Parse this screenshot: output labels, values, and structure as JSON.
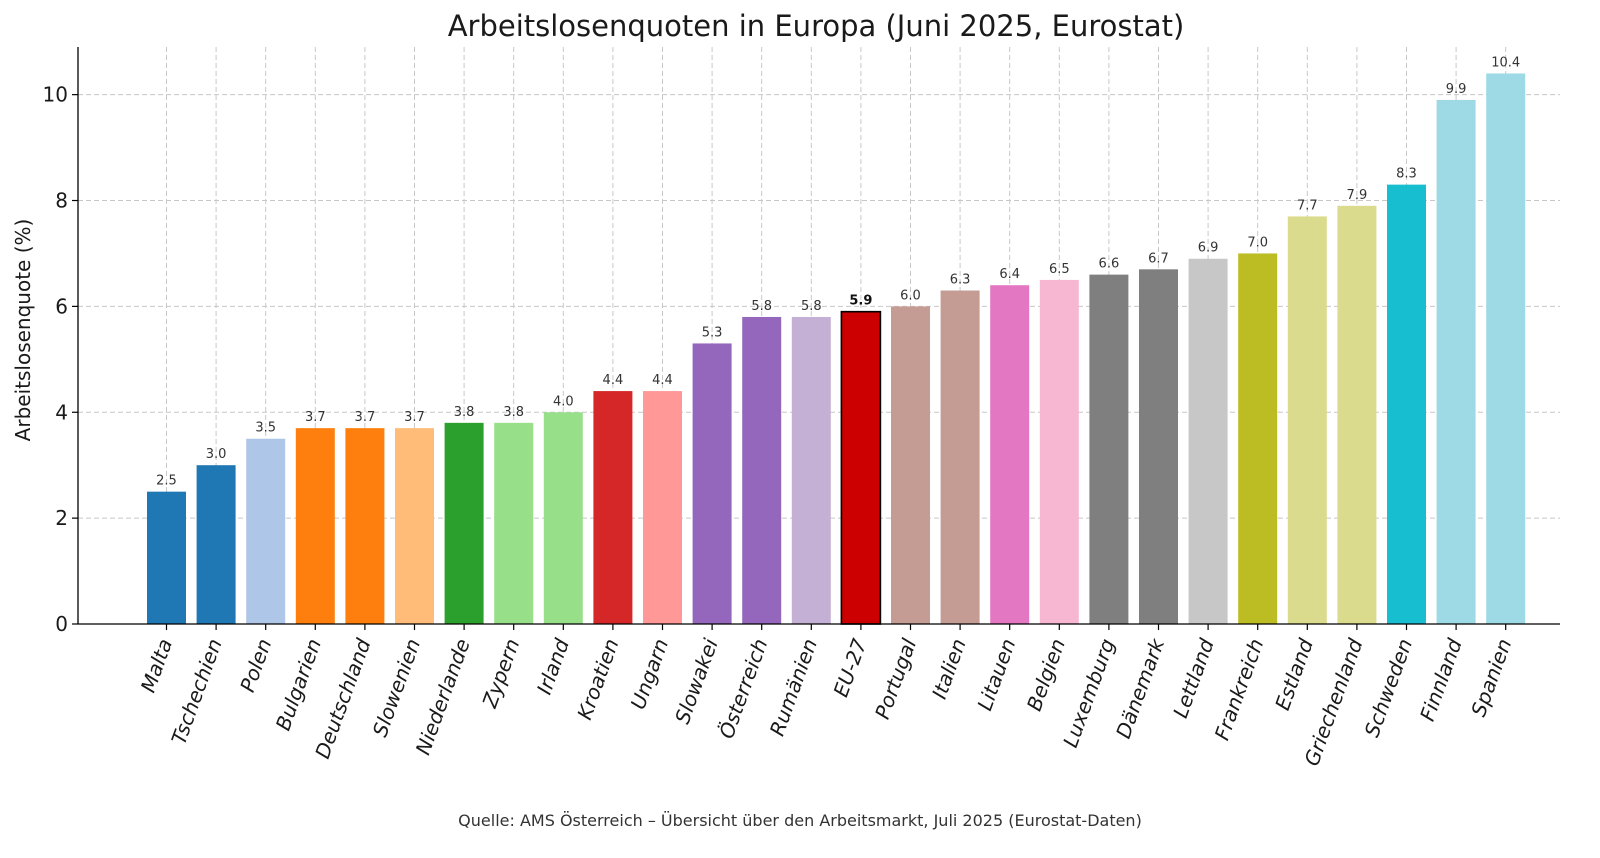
{
  "chart_data": {
    "type": "bar",
    "title": "Arbeitslosenquoten in Europa (Juni 2025, Eurostat)",
    "xlabel": "",
    "ylabel": "Arbeitslosenquote (%)",
    "ylim": [
      0,
      10.9
    ],
    "yticks": [
      0,
      2,
      4,
      6,
      8,
      10
    ],
    "grid": true,
    "source": "Quelle: AMS Österreich – Übersicht über den Arbeitsmarkt, Juli 2025 (Eurostat-Daten)",
    "categories": [
      "Malta",
      "Tschechien",
      "Polen",
      "Bulgarien",
      "Deutschland",
      "Slowenien",
      "Niederlande",
      "Zypern",
      "Irland",
      "Kroatien",
      "Ungarn",
      "Slowakei",
      "Österreich",
      "Rumänien",
      "EU-27",
      "Portugal",
      "Italien",
      "Litauen",
      "Belgien",
      "Luxemburg",
      "Dänemark",
      "Lettland",
      "Frankreich",
      "Estland",
      "Griechenland",
      "Schweden",
      "Finnland",
      "Spanien"
    ],
    "values": [
      2.5,
      3.0,
      3.5,
      3.7,
      3.7,
      3.7,
      3.8,
      3.8,
      4.0,
      4.4,
      4.4,
      5.3,
      5.8,
      5.8,
      5.9,
      6.0,
      6.3,
      6.4,
      6.5,
      6.6,
      6.7,
      6.9,
      7.0,
      7.7,
      7.9,
      8.3,
      9.9,
      10.4
    ],
    "value_labels": [
      "2.5",
      "3.0",
      "3.5",
      "3.7",
      "3.7",
      "3.7",
      "3.8",
      "3.8",
      "4.0",
      "4.4",
      "4.4",
      "5.3",
      "5.8",
      "5.8",
      "5.9",
      "6.0",
      "6.3",
      "6.4",
      "6.5",
      "6.6",
      "6.7",
      "6.9",
      "7.0",
      "7.7",
      "7.9",
      "8.3",
      "9.9",
      "10.4"
    ],
    "colors": [
      "#1f77b4",
      "#1f77b4",
      "#aec7e8",
      "#ff7f0e",
      "#ff7f0e",
      "#ffbb78",
      "#2ca02c",
      "#98df8a",
      "#98df8a",
      "#d62728",
      "#ff9896",
      "#9467bd",
      "#9467bd",
      "#c5b0d5",
      "#cc0000",
      "#c49c94",
      "#c49c94",
      "#e377c2",
      "#f7b6d2",
      "#7f7f7f",
      "#7f7f7f",
      "#c7c7c7",
      "#bcbd22",
      "#dbdb8d",
      "#dbdb8d",
      "#17becf",
      "#9edae5",
      "#9edae5"
    ],
    "highlight": "EU-27"
  }
}
